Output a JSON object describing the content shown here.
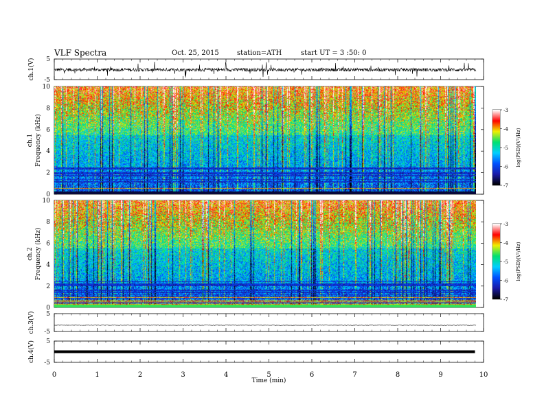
{
  "header": {
    "title": "VLF  Spectra",
    "date": "Oct. 25, 2015",
    "station": "station=ATH",
    "start": "start  UT  =   3  :50: 0"
  },
  "chart_data": [
    {
      "type": "line",
      "panel": "ch1-waveform",
      "ylabel": "ch.1(V)",
      "ylim": [
        -5,
        5
      ],
      "yticks": [
        "5",
        "-5"
      ],
      "xlim": [
        0,
        10
      ],
      "description_of_series": "dense noisy waveform around -0.2 V with spikes up to about +/-4 V, ending near 9.8 min",
      "series": [
        {
          "x": [
            0,
            0.5,
            1.0,
            1.5,
            2.0,
            2.5,
            3.0,
            3.5,
            4.0,
            4.5,
            5.0,
            5.5,
            6.0,
            6.5,
            7.0,
            7.5,
            8.0,
            8.5,
            9.0,
            9.5,
            9.8
          ],
          "y": [
            -0.3,
            -0.2,
            -0.4,
            -0.2,
            -0.3,
            -0.1,
            -0.5,
            -0.2,
            -0.2,
            -0.3,
            -0.2,
            -0.1,
            -0.2,
            -0.4,
            -0.2,
            -0.2,
            -0.3,
            -0.2,
            -0.1,
            -0.3,
            -0.2
          ]
        }
      ]
    },
    {
      "type": "heatmap",
      "panel": "ch1-spectrogram",
      "ylabel": "ch.1\nFrequency  (kHz)",
      "ylim": [
        0,
        10
      ],
      "yticks": [
        "0",
        "2",
        "4",
        "6",
        "8",
        "10"
      ],
      "xlim": [
        0,
        10
      ],
      "data_end_min": 9.8,
      "colorbar": {
        "label": "log(PSD)(V²/Hz)",
        "range": [
          -7,
          -3
        ],
        "ticks": [
          "-3",
          "-4",
          "-5",
          "-6",
          "-7"
        ],
        "colors": [
          "#000000",
          "#1a1aa8",
          "#0050ff",
          "#00d0ff",
          "#00e070",
          "#f0f000",
          "#ff0000",
          "#ffffff"
        ]
      }
    },
    {
      "type": "heatmap",
      "panel": "ch2-spectrogram",
      "ylabel": "ch.2\nFrequency  (kHz)",
      "ylim": [
        0,
        10
      ],
      "yticks": [
        "0",
        "2",
        "4",
        "6",
        "8",
        "10"
      ],
      "xlim": [
        0,
        10
      ],
      "data_end_min": 9.8,
      "colorbar": {
        "label": "log(PSD)(V²/Hz)",
        "range": [
          -7,
          -3
        ],
        "ticks": [
          "-3",
          "-4",
          "-5",
          "-6",
          "-7"
        ]
      }
    },
    {
      "type": "line",
      "panel": "ch3-waveform",
      "ylabel": "ch.3(V)",
      "ylim": [
        -5,
        5
      ],
      "yticks": [
        "5",
        "-5"
      ],
      "xlim": [
        0,
        10
      ],
      "series": [
        {
          "x": [
            0,
            1,
            2,
            3,
            4,
            5,
            6,
            7,
            8,
            9,
            9.8
          ],
          "y": [
            -1.5,
            -1.4,
            -1.5,
            -1.4,
            -1.5,
            -1.5,
            -1.4,
            -1.5,
            -1.4,
            -1.5,
            -1.5
          ]
        }
      ]
    },
    {
      "type": "line",
      "panel": "ch4-waveform",
      "ylabel": "ch.4(V)",
      "ylim": [
        -5,
        5
      ],
      "yticks": [
        "5",
        "-5"
      ],
      "xlim": [
        0,
        10
      ],
      "xlabel": "Time  (min)",
      "xticks": [
        "0",
        "1",
        "2",
        "3",
        "4",
        "5",
        "6",
        "7",
        "8",
        "9",
        "10"
      ],
      "series": [
        {
          "x": [
            0,
            9.8
          ],
          "y": [
            0,
            0
          ]
        }
      ]
    }
  ]
}
